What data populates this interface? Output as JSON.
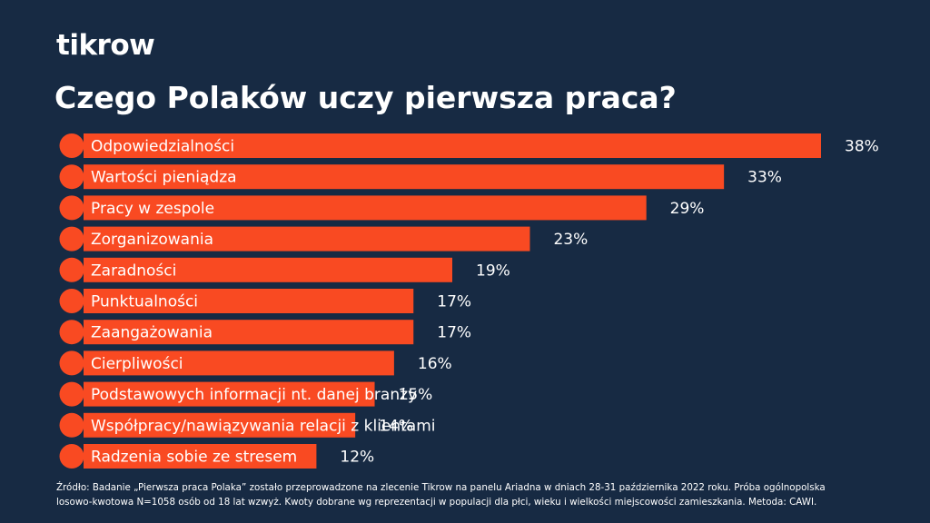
{
  "brand": {
    "logo_text": "tikrow",
    "colors": {
      "background": "#172a43",
      "bar": "#f94a22",
      "text": "#ffffff"
    }
  },
  "chart_data": {
    "type": "bar",
    "orientation": "horizontal",
    "title": "Czego Polaków uczy pierwsza praca?",
    "categories": [
      "Odpowiedzialności",
      "Wartości pieniądza",
      "Pracy w zespole",
      "Zorganizowania",
      "Zaradności",
      "Punktualności",
      "Zaangażowania",
      "Cierpliwości",
      "Podstawowych informacji nt. danej branży",
      "Współpracy/nawiązywania relacji z klientami",
      "Radzenia sobie ze stresem"
    ],
    "values": [
      38,
      33,
      29,
      23,
      19,
      17,
      17,
      16,
      15,
      14,
      12
    ],
    "value_labels": [
      "38%",
      "33%",
      "29%",
      "23%",
      "19%",
      "17%",
      "17%",
      "16%",
      "15%",
      "14%",
      "12%"
    ],
    "unit": "%",
    "xlim": [
      0,
      38
    ],
    "grid": false,
    "legend": "none"
  },
  "footer": {
    "source_line_1": "Źródło: Badanie „Pierwsza praca Polaka” zostało przeprowadzone na zlecenie Tikrow na panelu Ariadna w dniach 28-31 października 2022 roku. Próba ogólnopolska",
    "source_line_2": "losowo-kwotowa N=1058 osób od 18 lat wzwyż. Kwoty dobrane wg reprezentacji w populacji dla płci, wieku i wielkości miejscowości zamieszkania. Metoda: CAWI."
  }
}
